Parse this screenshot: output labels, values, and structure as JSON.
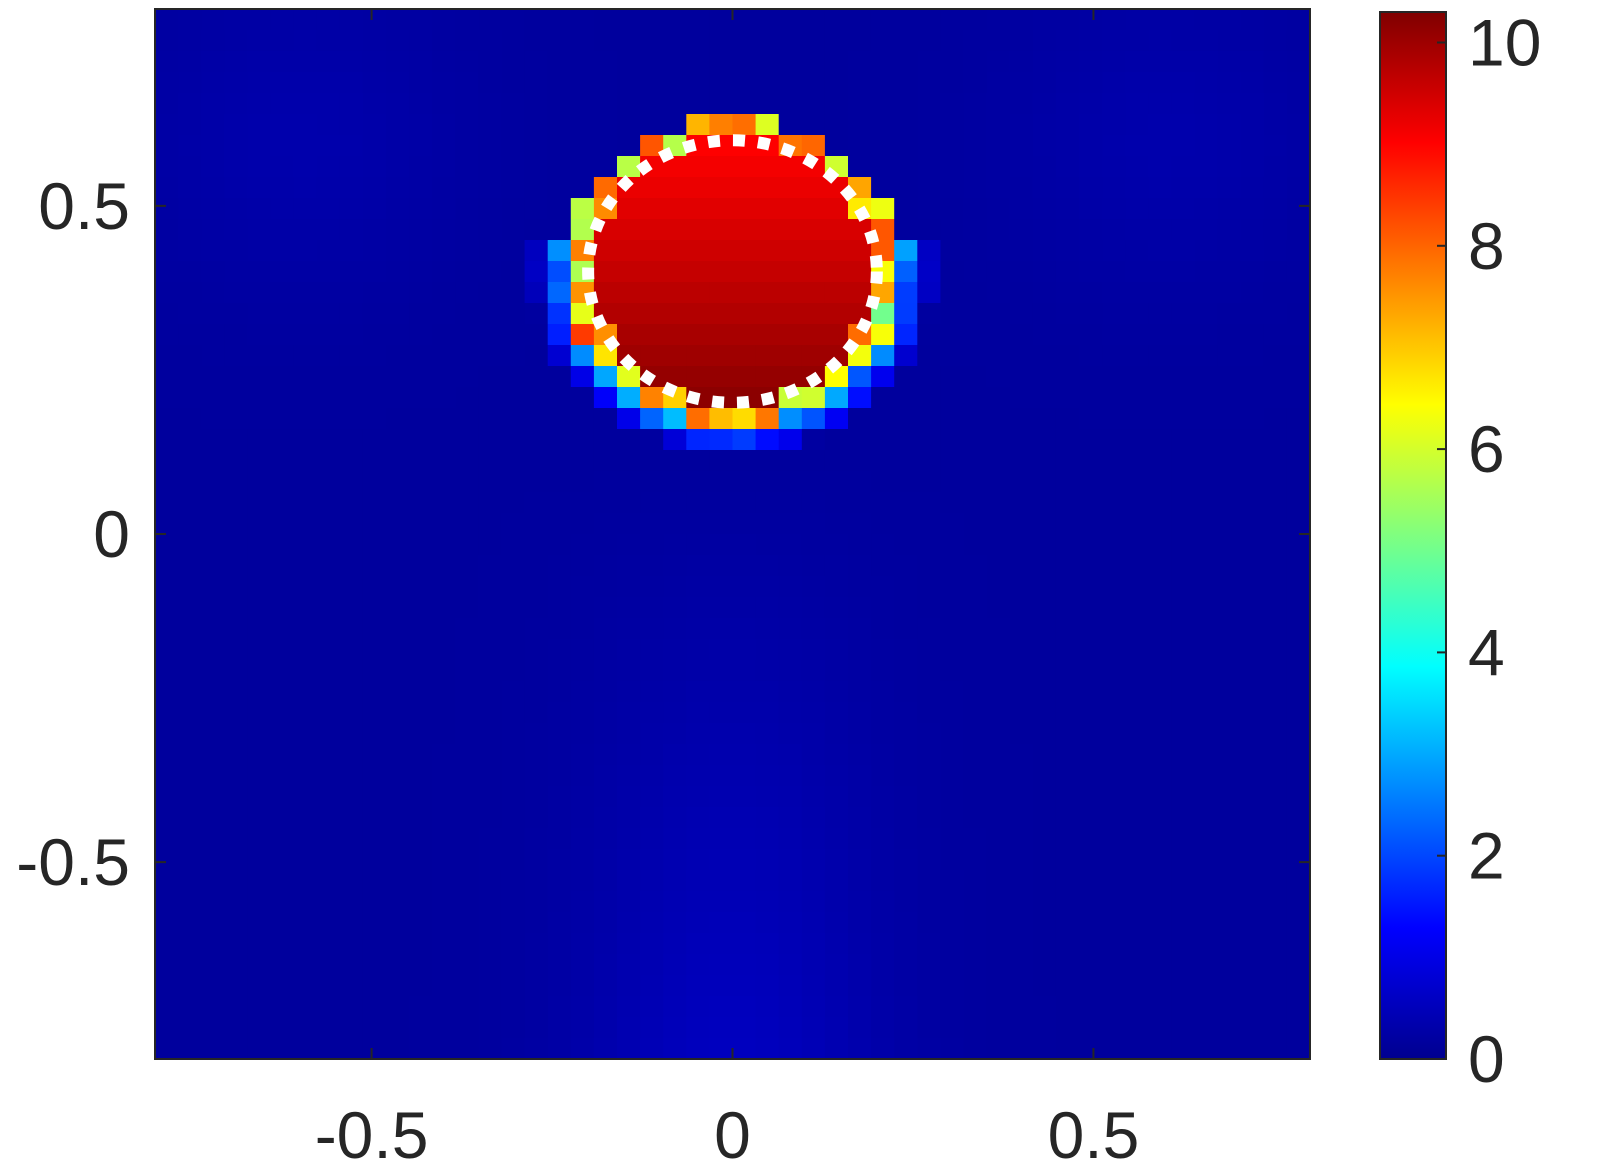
{
  "chart_data": {
    "type": "heatmap",
    "title": "",
    "xlabel": "",
    "ylabel": "",
    "xlim": [
      -0.8,
      0.8
    ],
    "ylim": [
      -0.8,
      0.8
    ],
    "x_ticks": [
      {
        "value": -0.5,
        "label": "-0.5"
      },
      {
        "value": 0,
        "label": "0"
      },
      {
        "value": 0.5,
        "label": "0.5"
      }
    ],
    "y_ticks": [
      {
        "value": 0.5,
        "label": "0.5"
      },
      {
        "value": 0,
        "label": "0"
      },
      {
        "value": -0.5,
        "label": "-0.5"
      }
    ],
    "colorbar": {
      "colormap": "jet",
      "clim": [
        0,
        10.3
      ],
      "ticks": [
        {
          "value": 0,
          "label": "0"
        },
        {
          "value": 2,
          "label": "2"
        },
        {
          "value": 4,
          "label": "4"
        },
        {
          "value": 6,
          "label": "6"
        },
        {
          "value": 8,
          "label": "8"
        },
        {
          "value": 10,
          "label": "10"
        }
      ]
    },
    "grid_resolution": 50,
    "background_value": 0.3,
    "inclusion": {
      "shape": "circle",
      "center": [
        0,
        0.4
      ],
      "radius": 0.2,
      "value_range": [
        9.0,
        10.2
      ]
    },
    "true_boundary": {
      "shape": "circle",
      "center": [
        0,
        0.4
      ],
      "radius": 0.2,
      "style": "dotted",
      "color": "#ffffff"
    }
  }
}
